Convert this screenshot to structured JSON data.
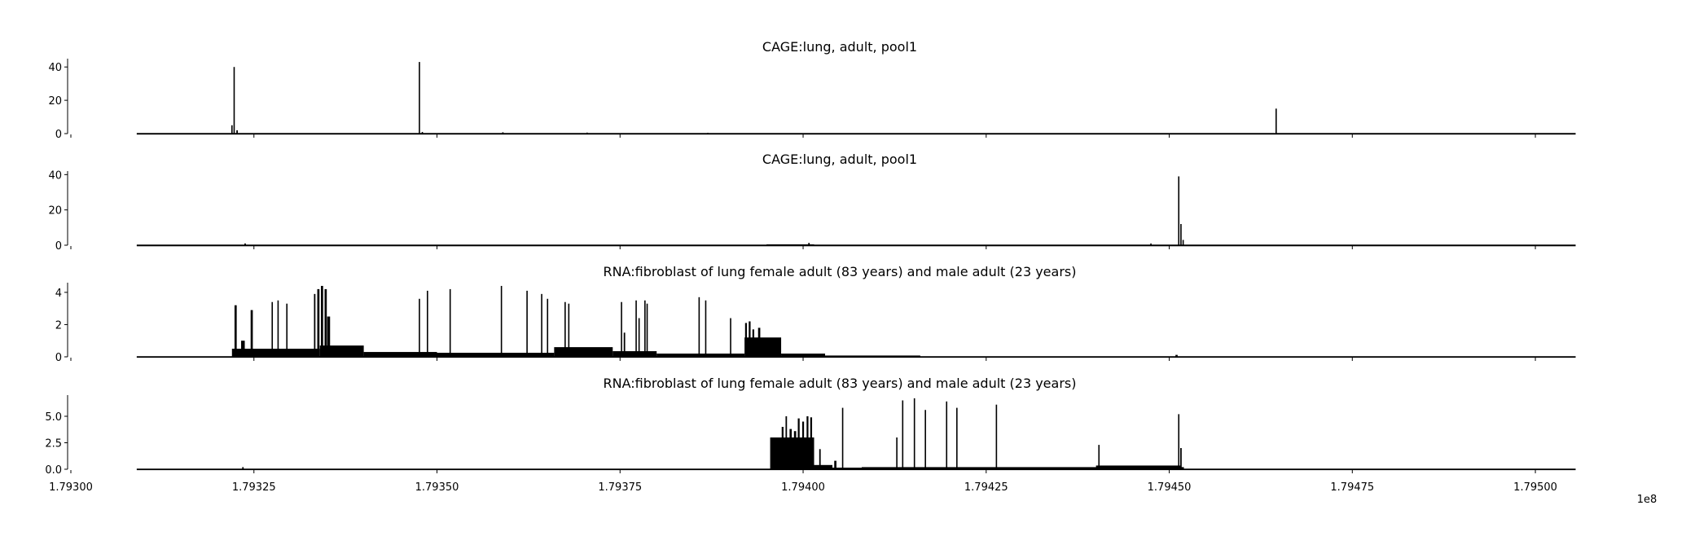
{
  "chart_data": {
    "type": "area",
    "x_scale_label": "1e8",
    "x_domain": [
      179300000,
      179506000
    ],
    "x_ticks": [
      {
        "value": 179300000,
        "label": "1.79300"
      },
      {
        "value": 179325000,
        "label": "1.79325"
      },
      {
        "value": 179350000,
        "label": "1.79350"
      },
      {
        "value": 179375000,
        "label": "1.79375"
      },
      {
        "value": 179400000,
        "label": "1.79400"
      },
      {
        "value": 179425000,
        "label": "1.79425"
      },
      {
        "value": 179450000,
        "label": "1.79450"
      },
      {
        "value": 179475000,
        "label": "1.79475"
      },
      {
        "value": 179500000,
        "label": "1.79500"
      }
    ],
    "data_x_range": [
      179309000,
      179505500
    ],
    "color": "#000000",
    "panels": [
      {
        "title": "CAGE:lung, adult, pool1",
        "ylim": [
          0,
          45
        ],
        "y_ticks": [
          {
            "value": 0,
            "label": "0"
          },
          {
            "value": 20,
            "label": "20"
          },
          {
            "value": 40,
            "label": "40"
          }
        ],
        "baseline": 0.15,
        "blocks": [],
        "peaks": [
          {
            "x": 179322000,
            "y": 5,
            "w": 120
          },
          {
            "x": 179322300,
            "y": 40,
            "w": 100
          },
          {
            "x": 179322700,
            "y": 2,
            "w": 200
          },
          {
            "x": 179347600,
            "y": 43,
            "w": 110
          },
          {
            "x": 179348000,
            "y": 1,
            "w": 150
          },
          {
            "x": 179359000,
            "y": 0.8,
            "w": 150
          },
          {
            "x": 179370500,
            "y": 0.6,
            "w": 150
          },
          {
            "x": 179387000,
            "y": 0.5,
            "w": 150
          },
          {
            "x": 179464600,
            "y": 15,
            "w": 110
          }
        ]
      },
      {
        "title": "CAGE:lung, adult, pool1",
        "ylim": [
          0,
          42
        ],
        "y_ticks": [
          {
            "value": 0,
            "label": "0"
          },
          {
            "value": 20,
            "label": "20"
          },
          {
            "value": 40,
            "label": "40"
          }
        ],
        "baseline": 0.1,
        "blocks": [
          {
            "x0": 179395000,
            "x1": 179401500,
            "y": 0.5
          }
        ],
        "peaks": [
          {
            "x": 179323800,
            "y": 1,
            "w": 200
          },
          {
            "x": 179400800,
            "y": 1.3,
            "w": 200
          },
          {
            "x": 179447500,
            "y": 1,
            "w": 150
          },
          {
            "x": 179451300,
            "y": 39,
            "w": 110
          },
          {
            "x": 179451600,
            "y": 12,
            "w": 180
          },
          {
            "x": 179451900,
            "y": 3,
            "w": 150
          }
        ]
      },
      {
        "title": "RNA:fibroblast of lung female adult (83 years) and male adult (23 years)",
        "ylim": [
          0,
          4.6
        ],
        "y_ticks": [
          {
            "value": 0,
            "label": "0"
          },
          {
            "value": 2,
            "label": "2"
          },
          {
            "value": 4,
            "label": "4"
          }
        ],
        "baseline": 0.02,
        "blocks": [
          {
            "x0": 179322000,
            "x1": 179334000,
            "y": 0.5
          },
          {
            "x0": 179334000,
            "x1": 179340000,
            "y": 0.7
          },
          {
            "x0": 179340000,
            "x1": 179350000,
            "y": 0.3
          },
          {
            "x0": 179350000,
            "x1": 179366000,
            "y": 0.25
          },
          {
            "x0": 179366000,
            "x1": 179374000,
            "y": 0.6
          },
          {
            "x0": 179374000,
            "x1": 179380000,
            "y": 0.35
          },
          {
            "x0": 179380000,
            "x1": 179392000,
            "y": 0.2
          },
          {
            "x0": 179392000,
            "x1": 179397000,
            "y": 1.2
          },
          {
            "x0": 179397000,
            "x1": 179403000,
            "y": 0.2
          },
          {
            "x0": 179403000,
            "x1": 179416000,
            "y": 0.08
          }
        ],
        "peaks": [
          {
            "x": 179322500,
            "y": 3.2,
            "w": 300
          },
          {
            "x": 179323500,
            "y": 1.0,
            "w": 500
          },
          {
            "x": 179324700,
            "y": 2.9,
            "w": 300
          },
          {
            "x": 179327500,
            "y": 3.4,
            "w": 150
          },
          {
            "x": 179328300,
            "y": 3.5,
            "w": 150
          },
          {
            "x": 179329500,
            "y": 3.3,
            "w": 150
          },
          {
            "x": 179333300,
            "y": 3.9,
            "w": 200
          },
          {
            "x": 179333800,
            "y": 4.2,
            "w": 300
          },
          {
            "x": 179334300,
            "y": 4.4,
            "w": 300
          },
          {
            "x": 179334800,
            "y": 4.2,
            "w": 300
          },
          {
            "x": 179335200,
            "y": 2.5,
            "w": 400
          },
          {
            "x": 179347600,
            "y": 3.6,
            "w": 120
          },
          {
            "x": 179348700,
            "y": 4.1,
            "w": 120
          },
          {
            "x": 179351800,
            "y": 4.2,
            "w": 120
          },
          {
            "x": 179358800,
            "y": 4.4,
            "w": 120
          },
          {
            "x": 179362300,
            "y": 4.1,
            "w": 120
          },
          {
            "x": 179364300,
            "y": 3.9,
            "w": 120
          },
          {
            "x": 179365100,
            "y": 3.6,
            "w": 120
          },
          {
            "x": 179367500,
            "y": 3.4,
            "w": 120
          },
          {
            "x": 179368000,
            "y": 3.3,
            "w": 120
          },
          {
            "x": 179375200,
            "y": 3.4,
            "w": 120
          },
          {
            "x": 179375600,
            "y": 1.5,
            "w": 200
          },
          {
            "x": 179377200,
            "y": 3.5,
            "w": 120
          },
          {
            "x": 179377600,
            "y": 2.4,
            "w": 120
          },
          {
            "x": 179378400,
            "y": 3.5,
            "w": 150
          },
          {
            "x": 179378700,
            "y": 3.3,
            "w": 150
          },
          {
            "x": 179385800,
            "y": 3.7,
            "w": 120
          },
          {
            "x": 179386700,
            "y": 3.5,
            "w": 120
          },
          {
            "x": 179390100,
            "y": 2.4,
            "w": 120
          },
          {
            "x": 179392200,
            "y": 2.1,
            "w": 250
          },
          {
            "x": 179392700,
            "y": 2.2,
            "w": 250
          },
          {
            "x": 179393200,
            "y": 1.7,
            "w": 250
          },
          {
            "x": 179394000,
            "y": 1.8,
            "w": 300
          },
          {
            "x": 179395000,
            "y": 1.0,
            "w": 200
          },
          {
            "x": 179451000,
            "y": 0.12,
            "w": 300
          }
        ]
      },
      {
        "title": "RNA:fibroblast of lung female adult (83 years) and male adult (23 years)",
        "ylim": [
          0,
          7.0
        ],
        "y_ticks": [
          {
            "value": 0,
            "label": "0.0"
          },
          {
            "value": 2.5,
            "label": "2.5"
          },
          {
            "value": 5,
            "label": "5.0"
          }
        ],
        "baseline": 0.03,
        "blocks": [
          {
            "x0": 179395500,
            "x1": 179401500,
            "y": 3.0
          },
          {
            "x0": 179401500,
            "x1": 179404000,
            "y": 0.4
          },
          {
            "x0": 179404000,
            "x1": 179408000,
            "y": 0.15
          },
          {
            "x0": 179408000,
            "x1": 179452000,
            "y": 0.2
          },
          {
            "x0": 179440000,
            "x1": 179451500,
            "y": 0.35
          }
        ],
        "peaks": [
          {
            "x": 179323500,
            "y": 0.2,
            "w": 200
          },
          {
            "x": 179395900,
            "y": 2.9,
            "w": 200
          },
          {
            "x": 179396500,
            "y": 3.0,
            "w": 200
          },
          {
            "x": 179397200,
            "y": 4.0,
            "w": 250
          },
          {
            "x": 179397700,
            "y": 5.0,
            "w": 200
          },
          {
            "x": 179398300,
            "y": 3.8,
            "w": 300
          },
          {
            "x": 179398900,
            "y": 3.6,
            "w": 300
          },
          {
            "x": 179399400,
            "y": 4.8,
            "w": 250
          },
          {
            "x": 179400000,
            "y": 4.5,
            "w": 250
          },
          {
            "x": 179400600,
            "y": 5.0,
            "w": 250
          },
          {
            "x": 179401100,
            "y": 4.9,
            "w": 250
          },
          {
            "x": 179402300,
            "y": 1.9,
            "w": 200
          },
          {
            "x": 179404400,
            "y": 0.8,
            "w": 300
          },
          {
            "x": 179405400,
            "y": 5.8,
            "w": 150
          },
          {
            "x": 179412800,
            "y": 3.0,
            "w": 120
          },
          {
            "x": 179413600,
            "y": 6.5,
            "w": 150
          },
          {
            "x": 179415200,
            "y": 6.7,
            "w": 150
          },
          {
            "x": 179416700,
            "y": 5.6,
            "w": 120
          },
          {
            "x": 179419600,
            "y": 6.4,
            "w": 150
          },
          {
            "x": 179421000,
            "y": 5.8,
            "w": 120
          },
          {
            "x": 179426400,
            "y": 6.1,
            "w": 150
          },
          {
            "x": 179440400,
            "y": 2.3,
            "w": 150
          },
          {
            "x": 179451300,
            "y": 5.2,
            "w": 150
          },
          {
            "x": 179451600,
            "y": 2.0,
            "w": 200
          }
        ]
      }
    ]
  }
}
